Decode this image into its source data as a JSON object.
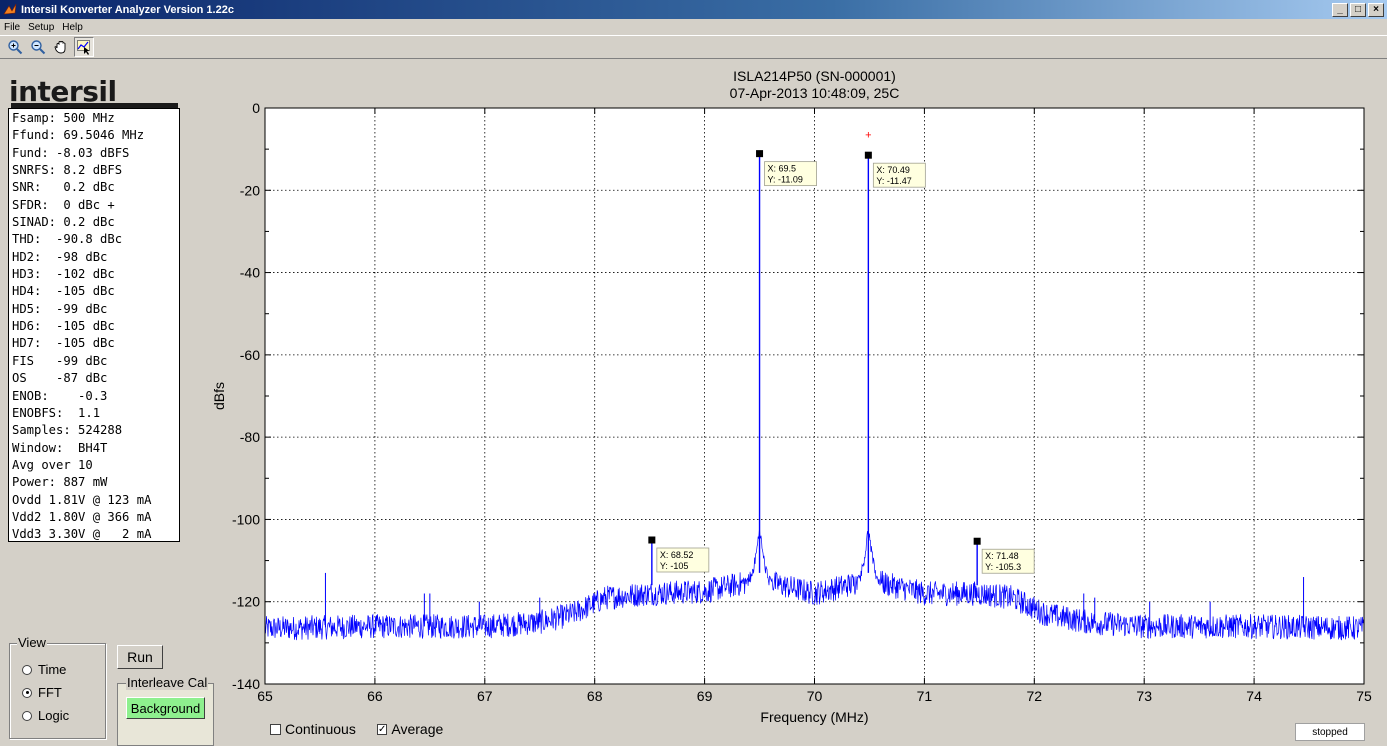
{
  "window": {
    "title": "Intersil Konverter Analyzer Version 1.22c",
    "minimize": "_",
    "maximize": "□",
    "close": "×"
  },
  "menu": [
    "File",
    "Setup",
    "Help"
  ],
  "toolbar": {
    "tools": [
      "zoom-in",
      "zoom-out",
      "pan",
      "data-cursor"
    ]
  },
  "logo": {
    "text": "intersil"
  },
  "stats": [
    "Fsamp: 500 MHz",
    "Ffund: 69.5046 MHz",
    "Fund: -8.03 dBFS",
    "SNRFS: 8.2 dBFS",
    "SNR:   0.2 dBc",
    "SFDR:  0 dBc +",
    "SINAD: 0.2 dBc",
    "THD:  -90.8 dBc",
    "HD2:  -98 dBc",
    "HD3:  -102 dBc",
    "HD4:  -105 dBc",
    "HD5:  -99 dBc",
    "HD6:  -105 dBc",
    "HD7:  -105 dBc",
    "FIS   -99 dBc",
    "OS    -87 dBc",
    "ENOB:    -0.3",
    "ENOBFS:  1.1",
    "Samples: 524288",
    "Window:  BH4T",
    "Avg over 10",
    "Power: 887 mW",
    "Ovdd 1.81V @ 123 mA",
    "Vdd2 1.80V @ 366 mA",
    "Vdd3 3.30V @   2 mA"
  ],
  "view": {
    "legend": "View",
    "options": [
      "Time",
      "FFT",
      "Logic"
    ],
    "selected": "FFT"
  },
  "run_label": "Run",
  "interleave": {
    "legend": "Interleave Cal",
    "button": "Background",
    "button_color": "#8ef08e"
  },
  "continuous": {
    "label": "Continuous",
    "checked": false
  },
  "average": {
    "label": "Average",
    "checked": true
  },
  "status": "stopped",
  "chart_data": {
    "type": "line",
    "title": "ISLA214P50 (SN-000001)",
    "subtitle": "07-Apr-2013 10:48:09, 25C",
    "xlabel": "Frequency (MHz)",
    "ylabel": "dBfs",
    "xlim": [
      65,
      75
    ],
    "ylim": [
      -140,
      0
    ],
    "xticks": [
      65,
      66,
      67,
      68,
      69,
      70,
      71,
      72,
      73,
      74,
      75
    ],
    "yticks": [
      0,
      -20,
      -40,
      -60,
      -80,
      -100,
      -120,
      -140
    ],
    "grid": true,
    "line_color": "#0000ff",
    "noise_floor": [
      {
        "x": 65.0,
        "y": -126.5
      },
      {
        "x": 66.0,
        "y": -126
      },
      {
        "x": 67.0,
        "y": -126
      },
      {
        "x": 67.5,
        "y": -125
      },
      {
        "x": 67.8,
        "y": -123
      },
      {
        "x": 68.1,
        "y": -119
      },
      {
        "x": 68.5,
        "y": -118
      },
      {
        "x": 69.0,
        "y": -117.5
      },
      {
        "x": 69.45,
        "y": -115
      },
      {
        "x": 69.55,
        "y": -115
      },
      {
        "x": 70.0,
        "y": -118
      },
      {
        "x": 70.45,
        "y": -115
      },
      {
        "x": 70.55,
        "y": -115
      },
      {
        "x": 71.0,
        "y": -118
      },
      {
        "x": 71.5,
        "y": -118
      },
      {
        "x": 71.8,
        "y": -119
      },
      {
        "x": 72.1,
        "y": -123
      },
      {
        "x": 72.5,
        "y": -125
      },
      {
        "x": 73.0,
        "y": -126
      },
      {
        "x": 74.0,
        "y": -126
      },
      {
        "x": 75.0,
        "y": -126.5
      }
    ],
    "peaks": [
      {
        "x": 69.5,
        "y": -11.09
      },
      {
        "x": 70.49,
        "y": -11.47
      },
      {
        "x": 68.52,
        "y": -105
      },
      {
        "x": 71.48,
        "y": -105.3
      }
    ],
    "spurs": [
      {
        "x": 65.55,
        "y": -113
      },
      {
        "x": 66.45,
        "y": -118
      },
      {
        "x": 66.5,
        "y": -118
      },
      {
        "x": 66.95,
        "y": -120
      },
      {
        "x": 67.5,
        "y": -119
      },
      {
        "x": 72.45,
        "y": -118
      },
      {
        "x": 72.55,
        "y": -119
      },
      {
        "x": 73.05,
        "y": -120
      },
      {
        "x": 73.6,
        "y": -120
      },
      {
        "x": 74.45,
        "y": -114
      }
    ],
    "datatips": [
      {
        "x": 69.5,
        "y": -11.09,
        "x_label": "X: 69.5",
        "y_label": "Y: -11.09"
      },
      {
        "x": 70.49,
        "y": -11.47,
        "x_label": "X: 70.49",
        "y_label": "Y: -11.47"
      },
      {
        "x": 68.52,
        "y": -105,
        "x_label": "X: 68.52",
        "y_label": "Y: -105"
      },
      {
        "x": 71.48,
        "y": -105.3,
        "x_label": "X: 71.48",
        "y_label": "Y: -105.3"
      }
    ],
    "marker": {
      "x": 70.49,
      "y": -6.5,
      "color": "#ff0000"
    }
  }
}
